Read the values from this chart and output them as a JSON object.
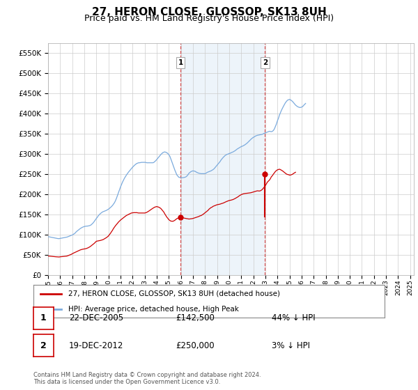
{
  "title": "27, HERON CLOSE, GLOSSOP, SK13 8UH",
  "subtitle": "Price paid vs. HM Land Registry's House Price Index (HPI)",
  "ylim": [
    0,
    575000
  ],
  "yticks": [
    0,
    50000,
    100000,
    150000,
    200000,
    250000,
    300000,
    350000,
    400000,
    450000,
    500000,
    550000
  ],
  "xlim_start": 1995.0,
  "xlim_end": 2025.3,
  "hpi_color": "#7aaadd",
  "price_color": "#cc0000",
  "marker1_date": 2005.97,
  "marker1_price": 142500,
  "marker1_label": "1",
  "marker2_date": 2012.97,
  "marker2_price": 250000,
  "marker2_label": "2",
  "shade_start": 2005.97,
  "shade_end": 2012.97,
  "legend_line1": "27, HERON CLOSE, GLOSSOP, SK13 8UH (detached house)",
  "legend_line2": "HPI: Average price, detached house, High Peak",
  "table_data": [
    {
      "num": "1",
      "date": "22-DEC-2005",
      "price": "£142,500",
      "pct": "44% ↓ HPI"
    },
    {
      "num": "2",
      "date": "19-DEC-2012",
      "price": "£250,000",
      "pct": "3% ↓ HPI"
    }
  ],
  "footer": "Contains HM Land Registry data © Crown copyright and database right 2024.\nThis data is licensed under the Open Government Licence v3.0.",
  "grid_color": "#cccccc",
  "title_fontsize": 11,
  "subtitle_fontsize": 9,
  "hpi_data_monthly": {
    "start_year": 1995,
    "start_month": 1,
    "values": [
      95000,
      94500,
      94000,
      93500,
      93000,
      92500,
      92000,
      91500,
      91000,
      90500,
      90000,
      90000,
      90500,
      91000,
      91500,
      92000,
      92500,
      93000,
      93500,
      94000,
      95000,
      96000,
      97000,
      98000,
      99000,
      100500,
      102000,
      104000,
      107000,
      109000,
      111000,
      113000,
      115000,
      116500,
      118000,
      119000,
      120000,
      120500,
      121000,
      121000,
      121500,
      122000,
      123000,
      124500,
      127000,
      129500,
      133000,
      136500,
      140000,
      143000,
      147000,
      149500,
      152000,
      154000,
      156000,
      157000,
      158000,
      159000,
      160000,
      161500,
      163000,
      165000,
      167000,
      169500,
      172000,
      175500,
      179000,
      184000,
      190000,
      197000,
      204000,
      211000,
      218000,
      224000,
      230000,
      235000,
      240000,
      244000,
      248000,
      251500,
      255000,
      258000,
      261000,
      264000,
      267000,
      269500,
      272000,
      274000,
      276000,
      277000,
      278000,
      278000,
      278500,
      279000,
      279000,
      279000,
      279000,
      279000,
      278000,
      278000,
      278000,
      278000,
      278000,
      278000,
      278000,
      278500,
      281000,
      283000,
      286000,
      289000,
      292000,
      295000,
      298000,
      300500,
      303000,
      304000,
      305000,
      304000,
      303000,
      301000,
      298000,
      294500,
      288000,
      281000,
      274000,
      267500,
      260000,
      254000,
      248000,
      245000,
      242000,
      241500,
      241000,
      241000,
      241000,
      241500,
      242000,
      243000,
      245000,
      248000,
      252000,
      254000,
      256000,
      257000,
      258000,
      257500,
      257000,
      255500,
      254000,
      253000,
      252000,
      251500,
      251000,
      251000,
      251000,
      251000,
      251000,
      252000,
      254000,
      255000,
      256000,
      257000,
      258000,
      259500,
      261000,
      263000,
      266000,
      269000,
      272000,
      275000,
      278000,
      281000,
      285000,
      288000,
      291000,
      293500,
      296000,
      297500,
      299000,
      299500,
      301000,
      301500,
      303000,
      304000,
      305000,
      306500,
      308000,
      310000,
      312000,
      313500,
      315000,
      316500,
      318000,
      319000,
      320000,
      321500,
      323000,
      325000,
      327000,
      329500,
      332000,
      334500,
      337000,
      339000,
      341000,
      342000,
      344000,
      345000,
      346000,
      346500,
      347000,
      347500,
      348000,
      348500,
      350000,
      351000,
      352000,
      353000,
      354000,
      355000,
      356000,
      355500,
      355000,
      356000,
      358000,
      362000,
      368000,
      374000,
      382000,
      388000,
      396000,
      402000,
      408000,
      413000,
      418000,
      422500,
      427000,
      430000,
      433000,
      434000,
      435000,
      434000,
      432000,
      430000,
      427000,
      424000,
      421000,
      419000,
      417000,
      416000,
      415000,
      415000,
      416000,
      417000,
      420000,
      422500,
      425000
    ]
  },
  "price_data_monthly": {
    "start_year": 1995,
    "start_month": 1,
    "values": [
      47000,
      46800,
      46500,
      46200,
      46000,
      45800,
      45500,
      45200,
      45000,
      44800,
      44500,
      44500,
      45000,
      45200,
      45500,
      45800,
      46000,
      46300,
      46500,
      47000,
      48000,
      49000,
      50000,
      51000,
      52500,
      53800,
      55000,
      56200,
      57500,
      58800,
      60000,
      61000,
      62000,
      62800,
      63500,
      64000,
      64500,
      64800,
      65500,
      66500,
      67500,
      69000,
      70500,
      72500,
      74500,
      76500,
      78500,
      81000,
      83500,
      84000,
      84500,
      85000,
      85500,
      86200,
      87000,
      88000,
      89500,
      91000,
      92500,
      94500,
      96500,
      100000,
      103000,
      107000,
      110500,
      115000,
      118500,
      122000,
      125000,
      128000,
      131000,
      133500,
      136000,
      138000,
      140000,
      142000,
      144000,
      145800,
      147500,
      148800,
      150000,
      151200,
      152500,
      153500,
      154000,
      154200,
      154500,
      154300,
      154500,
      154000,
      153500,
      153500,
      153500,
      153500,
      153500,
      153500,
      153500,
      154000,
      155000,
      156500,
      158000,
      159800,
      161500,
      163200,
      165000,
      166500,
      168000,
      168800,
      169500,
      168800,
      168000,
      166500,
      165000,
      162000,
      159000,
      156000,
      151500,
      147500,
      143500,
      140500,
      137000,
      135200,
      133500,
      133200,
      133000,
      134000,
      135500,
      137500,
      139500,
      140500,
      141500,
      142000,
      142500,
      142200,
      142000,
      141000,
      140500,
      140000,
      139500,
      139200,
      138500,
      138800,
      139000,
      139500,
      140000,
      140800,
      141500,
      142500,
      143000,
      144000,
      145000,
      146500,
      147000,
      148500,
      150000,
      152000,
      154000,
      156000,
      158000,
      160000,
      163000,
      165000,
      167000,
      168000,
      170000,
      171000,
      172000,
      173000,
      174000,
      174500,
      175000,
      175500,
      176500,
      177200,
      178000,
      179200,
      180500,
      181500,
      182500,
      183500,
      184500,
      185000,
      185500,
      186200,
      187000,
      188200,
      189500,
      191000,
      192500,
      194000,
      196000,
      197500,
      199000,
      200000,
      201000,
      201500,
      202000,
      202200,
      202500,
      202800,
      203000,
      203500,
      204000,
      204800,
      205500,
      206200,
      207000,
      207800,
      208500,
      208200,
      208000,
      208500,
      210000,
      212000,
      215000,
      218000,
      221500,
      225500,
      230000,
      232500,
      235000,
      238500,
      243500,
      246000,
      250000,
      253000,
      256500,
      258500,
      260500,
      261200,
      262000,
      261000,
      259500,
      258000,
      256000,
      254000,
      252000,
      250000,
      249000,
      248500,
      247500,
      247500,
      248500,
      249500,
      251500,
      253000,
      254500
    ]
  }
}
